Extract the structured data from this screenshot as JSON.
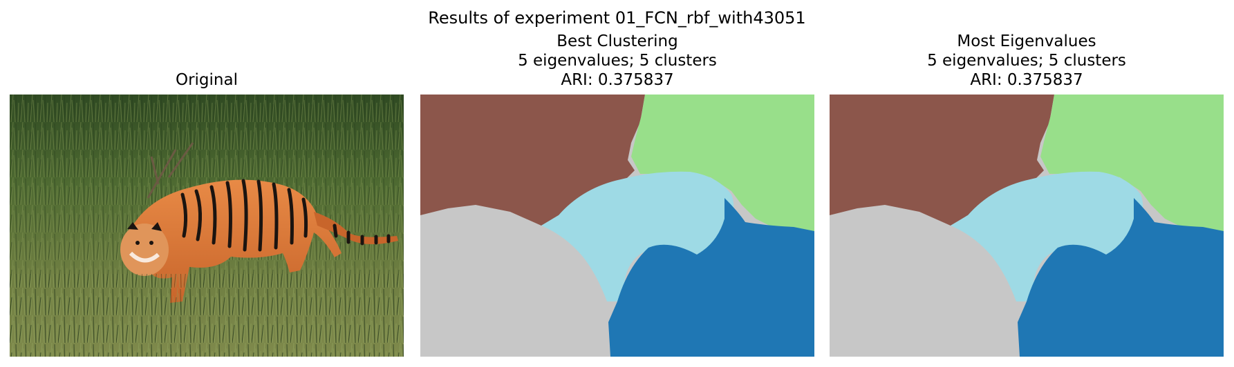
{
  "figure": {
    "suptitle": "Results of experiment 01_FCN_rbf_with43051"
  },
  "panels": [
    {
      "title_lines": [
        "Original"
      ]
    },
    {
      "title_lines": [
        "Best Clustering",
        "5 eigenvalues; 5 clusters",
        "ARI: 0.375837"
      ]
    },
    {
      "title_lines": [
        "Most Eigenvalues",
        "5 eigenvalues; 5 clusters",
        "ARI: 0.375837"
      ]
    }
  ],
  "colors": {
    "cluster_brown": "#8c564b",
    "cluster_light_green": "#98df8a",
    "cluster_light_cyan": "#9edae5",
    "cluster_gray": "#c7c7c7",
    "cluster_blue": "#1f77b4",
    "grass_dark": "#3f5a2a",
    "grass_light": "#7a8f4a",
    "tiger_orange": "#d9793a"
  }
}
